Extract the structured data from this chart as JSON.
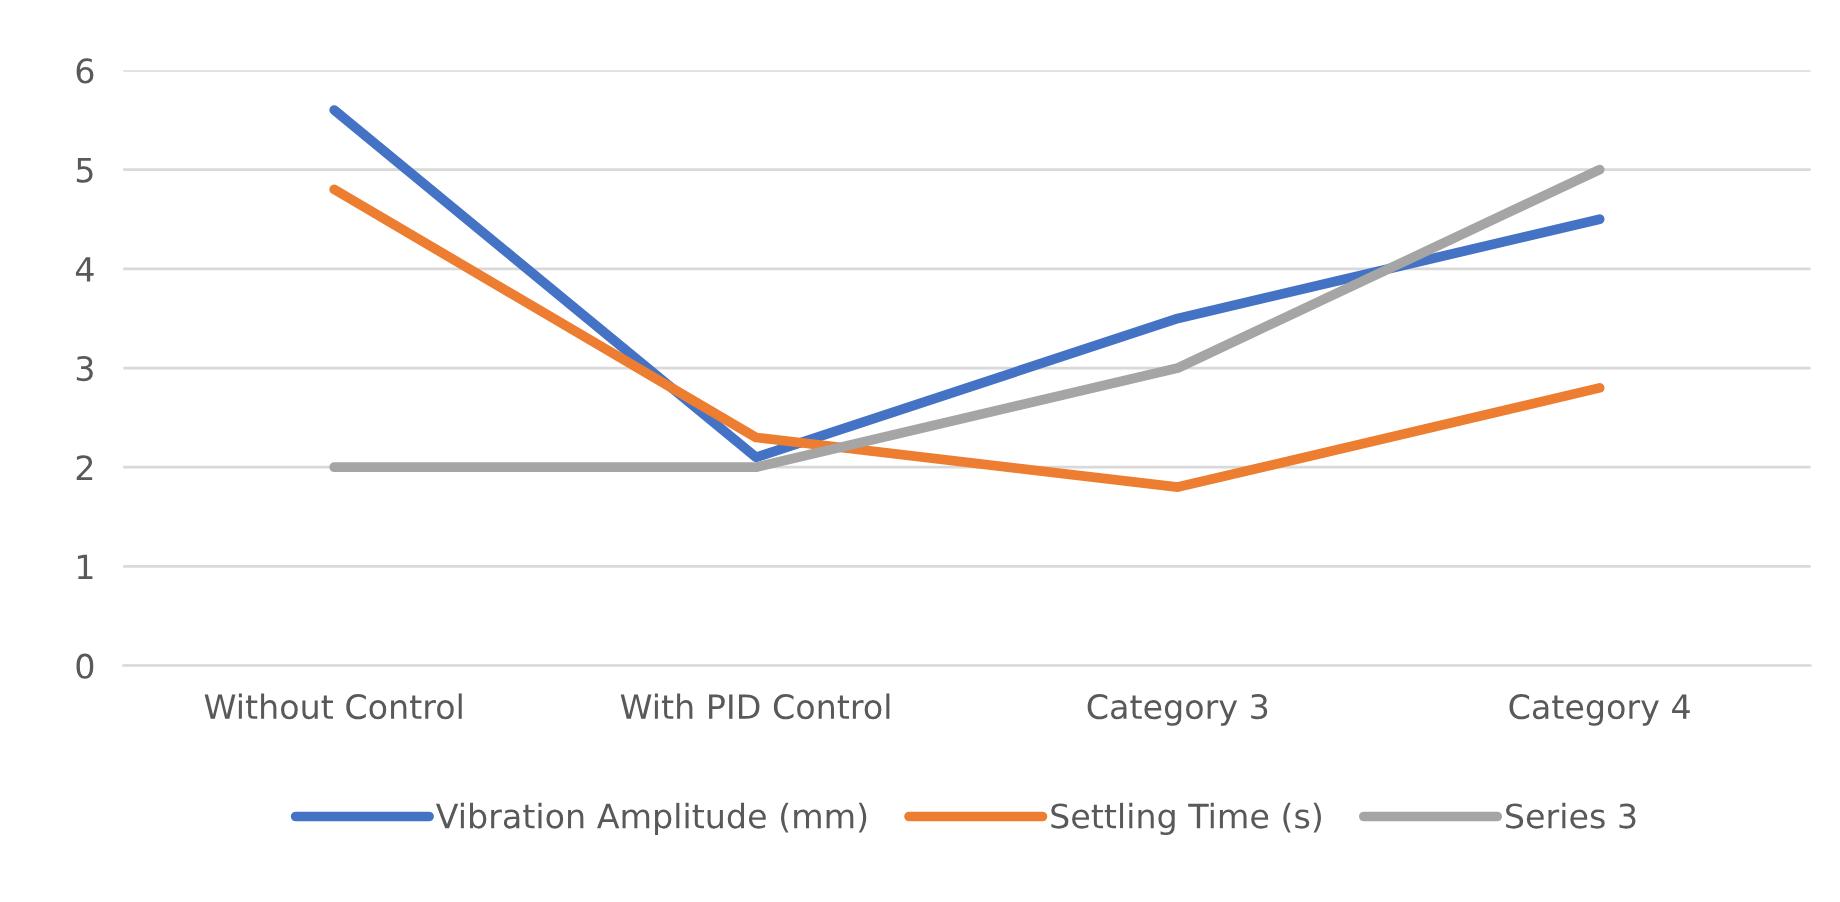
{
  "chart_data": {
    "type": "line",
    "categories": [
      "Without Control",
      "With PID Control",
      "Category 3",
      "Category 4"
    ],
    "series": [
      {
        "name": "Vibration Amplitude (mm)",
        "color": "#4472c4",
        "values": [
          5.6,
          2.1,
          3.5,
          4.5
        ]
      },
      {
        "name": "Settling Time (s)",
        "color": "#ed7d31",
        "values": [
          4.8,
          2.3,
          1.8,
          2.8
        ]
      },
      {
        "name": "Series 3",
        "color": "#a5a5a5",
        "values": [
          2,
          2,
          3,
          5
        ]
      }
    ],
    "ylim": [
      0,
      6
    ],
    "yticks": [
      0,
      1,
      2,
      3,
      4,
      5,
      6
    ],
    "grid": "y",
    "legend": "bottom",
    "marker": "none",
    "line_style": "solid"
  }
}
